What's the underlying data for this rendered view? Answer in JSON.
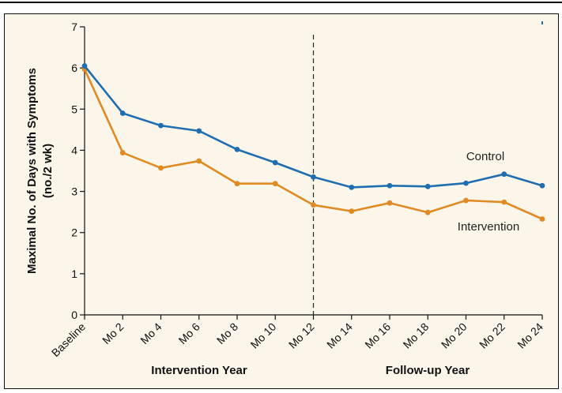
{
  "chart_data": {
    "type": "line",
    "title": "",
    "categories": [
      "Baseline",
      "Mo 2",
      "Mo 4",
      "Mo 6",
      "Mo 8",
      "Mo 10",
      "Mo 12",
      "Mo 14",
      "Mo 16",
      "Mo 18",
      "Mo 20",
      "Mo 22",
      "Mo 24"
    ],
    "ylabel": [
      "Maximal No. of Days with Symptoms",
      "(no./2 wk)"
    ],
    "ylim": [
      0,
      7
    ],
    "yticks": [
      0,
      1,
      2,
      3,
      4,
      5,
      6,
      7
    ],
    "grid": false,
    "series": [
      {
        "name": "Control",
        "color": "#1f6fb0",
        "values": [
          6.05,
          4.9,
          4.6,
          4.47,
          4.02,
          3.7,
          3.35,
          3.1,
          3.14,
          3.12,
          3.2,
          3.42,
          3.14
        ]
      },
      {
        "name": "Intervention",
        "color": "#e08a23",
        "values": [
          5.97,
          3.94,
          3.57,
          3.74,
          3.19,
          3.19,
          2.67,
          2.52,
          2.72,
          2.49,
          2.78,
          2.74,
          2.33
        ]
      }
    ],
    "divider_after_category": "Mo 12",
    "period_labels": [
      "Intervention Year",
      "Follow-up Year"
    ]
  }
}
